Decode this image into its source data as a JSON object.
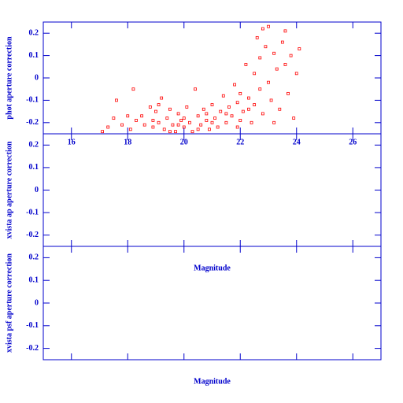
{
  "chart_data": [
    {
      "type": "scatter",
      "ylabel": "phot aperture correction",
      "xlim": [
        15,
        27
      ],
      "ylim": [
        -0.25,
        0.25
      ],
      "xticks": [
        16,
        18,
        20,
        22,
        24,
        26
      ],
      "yticks": [
        0.2,
        0.1,
        0,
        -0.1,
        -0.2
      ],
      "xtick_labels": true,
      "series": [
        {
          "color": "#ff0000",
          "x": [
            17.3,
            17.5,
            17.6,
            17.8,
            18.0,
            18.1,
            18.2,
            18.3,
            18.5,
            18.6,
            18.8,
            18.9,
            19.0,
            19.1,
            19.2,
            19.3,
            19.4,
            19.5,
            19.6,
            19.7,
            19.8,
            19.9,
            20.0,
            20.1,
            20.2,
            20.3,
            20.4,
            20.5,
            20.6,
            20.7,
            20.8,
            20.9,
            21.0,
            21.1,
            21.2,
            21.3,
            21.4,
            21.5,
            21.6,
            21.7,
            21.8,
            21.9,
            22.0,
            22.0,
            22.1,
            22.2,
            22.3,
            22.4,
            22.5,
            22.5,
            22.6,
            22.7,
            22.7,
            22.8,
            22.9,
            23.0,
            23.0,
            23.1,
            23.2,
            23.3,
            23.4,
            23.5,
            23.6,
            23.7,
            23.8,
            24.0,
            24.1,
            23.9,
            19.5,
            20.0,
            20.5,
            21.0,
            21.5,
            18.9,
            19.8,
            20.8,
            21.9,
            22.3,
            23.2,
            19.1,
            17.1,
            22.8,
            23.6
          ],
          "y": [
            -0.22,
            -0.18,
            -0.1,
            -0.21,
            -0.17,
            -0.23,
            -0.05,
            -0.19,
            -0.17,
            -0.21,
            -0.13,
            -0.22,
            -0.15,
            -0.2,
            -0.09,
            -0.23,
            -0.18,
            -0.14,
            -0.21,
            -0.24,
            -0.16,
            -0.19,
            -0.22,
            -0.13,
            -0.2,
            -0.24,
            -0.05,
            -0.17,
            -0.21,
            -0.14,
            -0.19,
            -0.23,
            -0.12,
            -0.18,
            -0.22,
            -0.15,
            -0.08,
            -0.2,
            -0.13,
            -0.17,
            -0.03,
            -0.11,
            -0.19,
            -0.07,
            -0.15,
            0.06,
            -0.09,
            -0.2,
            0.02,
            -0.12,
            0.18,
            -0.05,
            0.09,
            -0.16,
            0.14,
            0.23,
            -0.02,
            -0.1,
            0.11,
            0.04,
            -0.14,
            0.16,
            0.06,
            -0.07,
            0.1,
            0.02,
            0.13,
            -0.18,
            -0.24,
            -0.18,
            -0.23,
            -0.2,
            -0.16,
            -0.19,
            -0.21,
            -0.16,
            -0.22,
            -0.14,
            -0.2,
            -0.12,
            -0.24,
            0.22,
            0.21
          ]
        }
      ]
    },
    {
      "type": "scatter",
      "ylabel": "xvista ap aperture correction",
      "xlabel": "Magnitude",
      "xlim": [
        15,
        27
      ],
      "ylim": [
        -0.25,
        0.25
      ],
      "xticks": [
        16,
        18,
        20,
        22,
        24,
        26
      ],
      "yticks": [
        0.2,
        0.1,
        0,
        -0.1,
        -0.2
      ],
      "xtick_labels": false,
      "series": []
    },
    {
      "type": "scatter",
      "ylabel": "xvista psf aperture correction",
      "xlabel": "Magnitude",
      "xlim": [
        15,
        27
      ],
      "ylim": [
        -0.25,
        0.25
      ],
      "xticks": [
        16,
        18,
        20,
        22,
        24,
        26
      ],
      "yticks": [
        0.2,
        0.1,
        0,
        -0.1,
        -0.2
      ],
      "xtick_labels": false,
      "series": []
    }
  ]
}
